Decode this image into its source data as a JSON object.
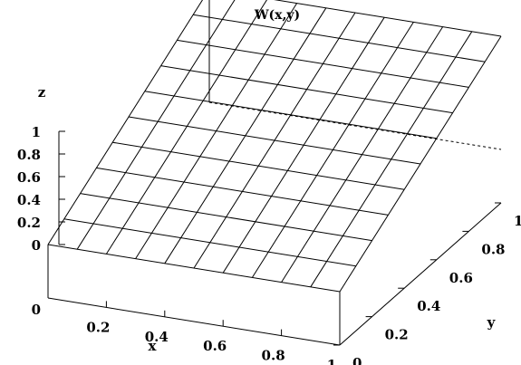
{
  "chart_data": {
    "type": "surface",
    "title": "W(x,y)",
    "xlabel": "x",
    "ylabel": "y",
    "zlabel": "z",
    "x_ticks": [
      "0.2",
      "0.4",
      "0.6",
      "0.8",
      "1"
    ],
    "y_ticks": [
      "0",
      "0.2",
      "0.4",
      "0.6",
      "0.8",
      "1"
    ],
    "z_ticks": [
      "0",
      "0.2",
      "0.4",
      "0.6",
      "0.8",
      "1"
    ],
    "base_zero_label": "0",
    "xlim": [
      0,
      1
    ],
    "ylim": [
      0,
      1
    ],
    "zlim": [
      0,
      1
    ],
    "grid_resolution": 10,
    "surface": "z = y",
    "colors": {
      "lines": "#000000",
      "background": "#ffffff"
    }
  }
}
